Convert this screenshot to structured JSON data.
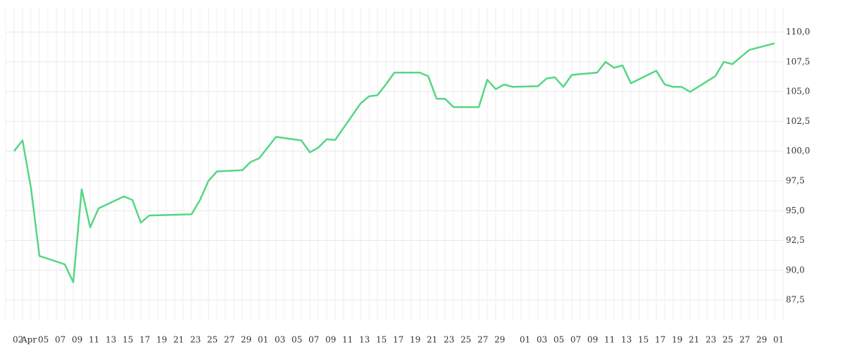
{
  "chart_data": {
    "type": "line",
    "x": [
      "Apr 02",
      "Apr 03",
      "Apr 04",
      "Apr 05",
      "Apr 08",
      "Apr 09",
      "Apr 10",
      "Apr 11",
      "Apr 12",
      "Apr 15",
      "Apr 16",
      "Apr 17",
      "Apr 18",
      "Apr 23",
      "Apr 24",
      "Apr 25",
      "Apr 26",
      "Apr 29",
      "Apr 30",
      "May 01",
      "May 03",
      "May 06",
      "May 07",
      "May 08",
      "May 09",
      "May 10",
      "May 13",
      "May 14",
      "May 15",
      "May 16",
      "May 17",
      "May 20",
      "May 21",
      "May 22",
      "May 23",
      "May 24",
      "May 27",
      "May 28",
      "May 29",
      "May 30",
      "May 31",
      "Jun 03",
      "Jun 04",
      "Jun 05",
      "Jun 06",
      "Jun 07",
      "Jun 10",
      "Jun 11",
      "Jun 12",
      "Jun 13",
      "Jun 14",
      "Jun 17",
      "Jun 18",
      "Jun 19",
      "Jun 20",
      "Jun 21",
      "Jun 24",
      "Jun 25",
      "Jun 26",
      "Jun 28",
      "Jul 01"
    ],
    "series": [
      {
        "color": "#55d684",
        "values": [
          100.0,
          100.9,
          96.9,
          91.2,
          90.5,
          89.0,
          96.8,
          93.6,
          95.2,
          96.2,
          95.9,
          94.0,
          94.6,
          94.7,
          95.9,
          97.5,
          98.3,
          98.4,
          99.1,
          99.4,
          101.2,
          100.9,
          99.9,
          100.3,
          101.0,
          100.95,
          104.0,
          104.6,
          104.7,
          105.6,
          106.6,
          106.6,
          106.3,
          104.4,
          104.4,
          103.7,
          103.7,
          106.0,
          105.2,
          105.6,
          105.4,
          105.45,
          106.1,
          106.2,
          105.4,
          106.4,
          106.6,
          107.5,
          107.0,
          107.2,
          105.7,
          106.75,
          105.6,
          105.4,
          105.4,
          104.98,
          106.3,
          107.5,
          107.3,
          108.5,
          109.05
        ]
      }
    ],
    "xlim": [
      "Apr 01",
      "Jul 02"
    ],
    "xticks": [
      {
        "value": "Apr 02",
        "label": "02"
      },
      {
        "value": "Apr 03",
        "label": "Apr"
      },
      {
        "value": "Apr 05",
        "label": "05"
      },
      {
        "value": "Apr 07",
        "label": "07"
      },
      {
        "value": "Apr 09",
        "label": "09"
      },
      {
        "value": "Apr 11",
        "label": "11"
      },
      {
        "value": "Apr 13",
        "label": "13"
      },
      {
        "value": "Apr 15",
        "label": "15"
      },
      {
        "value": "Apr 17",
        "label": "17"
      },
      {
        "value": "Apr 19",
        "label": "19"
      },
      {
        "value": "Apr 21",
        "label": "21"
      },
      {
        "value": "Apr 23",
        "label": "23"
      },
      {
        "value": "Apr 25",
        "label": "25"
      },
      {
        "value": "Apr 27",
        "label": "27"
      },
      {
        "value": "Apr 29",
        "label": "29"
      },
      {
        "value": "May 01",
        "label": "01"
      },
      {
        "value": "May 03",
        "label": "03"
      },
      {
        "value": "May 05",
        "label": "05"
      },
      {
        "value": "May 07",
        "label": "07"
      },
      {
        "value": "May 09",
        "label": "09"
      },
      {
        "value": "May 11",
        "label": "11"
      },
      {
        "value": "May 13",
        "label": "13"
      },
      {
        "value": "May 15",
        "label": "15"
      },
      {
        "value": "May 17",
        "label": "17"
      },
      {
        "value": "May 19",
        "label": "19"
      },
      {
        "value": "May 21",
        "label": "21"
      },
      {
        "value": "May 23",
        "label": "23"
      },
      {
        "value": "May 25",
        "label": "25"
      },
      {
        "value": "May 27",
        "label": "27"
      },
      {
        "value": "May 29",
        "label": "29"
      },
      {
        "value": "Jun 01",
        "label": "01"
      },
      {
        "value": "Jun 03",
        "label": "03"
      },
      {
        "value": "Jun 05",
        "label": "05"
      },
      {
        "value": "Jun 07",
        "label": "07"
      },
      {
        "value": "Jun 09",
        "label": "09"
      },
      {
        "value": "Jun 11",
        "label": "11"
      },
      {
        "value": "Jun 13",
        "label": "13"
      },
      {
        "value": "Jun 15",
        "label": "15"
      },
      {
        "value": "Jun 17",
        "label": "17"
      },
      {
        "value": "Jun 19",
        "label": "19"
      },
      {
        "value": "Jun 21",
        "label": "21"
      },
      {
        "value": "Jun 23",
        "label": "23"
      },
      {
        "value": "Jun 25",
        "label": "25"
      },
      {
        "value": "Jun 27",
        "label": "27"
      },
      {
        "value": "Jun 29",
        "label": "29"
      },
      {
        "value": "Jul 01",
        "label": "01"
      }
    ],
    "ylim": [
      85.8,
      112.1
    ],
    "yticks": [
      {
        "value": 87.5,
        "label": "87,5"
      },
      {
        "value": 90,
        "label": "90,0"
      },
      {
        "value": 92.5,
        "label": "92,5"
      },
      {
        "value": 95,
        "label": "95,0"
      },
      {
        "value": 97.5,
        "label": "97,5"
      },
      {
        "value": 100,
        "label": "100,0"
      },
      {
        "value": 102.5,
        "label": "102,5"
      },
      {
        "value": 105,
        "label": "105,0"
      },
      {
        "value": 107.5,
        "label": "107,5"
      },
      {
        "value": 110,
        "label": "110,0"
      }
    ],
    "grid": true
  }
}
